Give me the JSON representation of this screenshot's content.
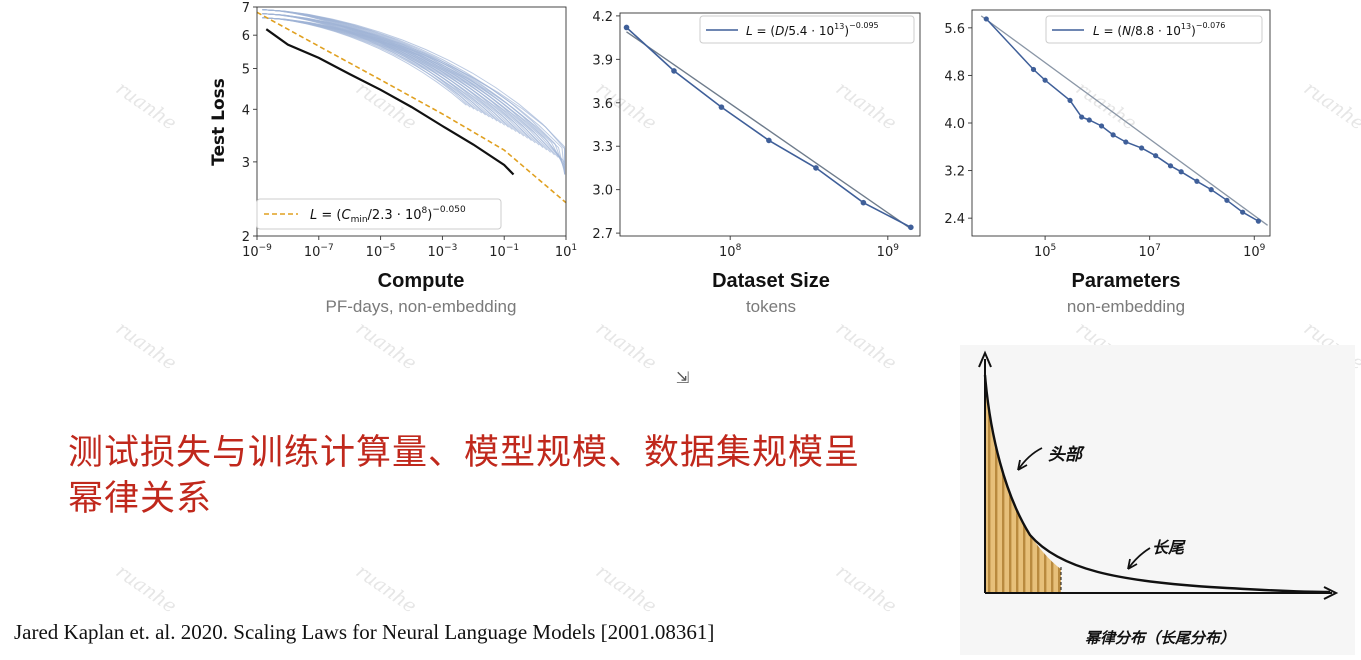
{
  "chart_data": [
    {
      "type": "line",
      "id": "compute",
      "title": "Compute",
      "subtitle": "PF-days, non-embedding",
      "ylabel": "Test Loss",
      "xscale": "log",
      "yscale": "log",
      "xlim": [
        1e-09,
        10
      ],
      "ylim": [
        2,
        7
      ],
      "x_ticks": [
        "10−9",
        "10−7",
        "10−5",
        "10−3",
        "10−1",
        "101"
      ],
      "y_ticks": [
        "2",
        "3",
        "4",
        "5",
        "6",
        "7"
      ],
      "legend": {
        "label": "L = (C_min/2.3·10^8)^−0.050",
        "placement": "bottom-left"
      },
      "series": [
        {
          "name": "L = (C_min/2.3·10^8)^−0.050",
          "style": "dashed",
          "color": "#e0a020",
          "x": [
            1e-09,
            1e-07,
            1e-05,
            0.001,
            0.1,
            10
          ],
          "y": [
            6.8,
            5.65,
            4.7,
            3.9,
            3.2,
            2.4
          ]
        },
        {
          "style": "solid",
          "color": "#111111",
          "x": [
            2e-09,
            1e-08,
            1e-07,
            1e-06,
            1e-05,
            0.0001,
            0.001,
            0.01,
            0.1,
            0.2
          ],
          "y": [
            6.2,
            5.7,
            5.3,
            4.85,
            4.45,
            4.05,
            3.65,
            3.3,
            2.95,
            2.8
          ]
        }
      ],
      "colors": {
        "curves": "#9fb4d6",
        "frontier": "#111111",
        "fit": "#e0a020"
      }
    },
    {
      "type": "line",
      "id": "dataset",
      "title": "Dataset Size",
      "subtitle": "tokens",
      "xscale": "log",
      "xlim": [
        20000000.0,
        1600000000.0
      ],
      "ylim": [
        2.68,
        4.22
      ],
      "x_ticks": [
        "108",
        "109"
      ],
      "y_ticks": [
        "2.7",
        "3.0",
        "3.3",
        "3.6",
        "3.9",
        "4.2"
      ],
      "legend": {
        "label": "L = (D/5.4·10^13)^−0.095",
        "placement": "top-right"
      },
      "series": [
        {
          "name": "L = (D/5.4·10^13)^−0.095",
          "x": [
            22000000.0,
            44000000.0,
            88000000.0,
            176000000.0,
            350000000.0,
            700000000.0,
            1400000000.0
          ],
          "y": [
            4.12,
            3.82,
            3.57,
            3.34,
            3.15,
            2.91,
            2.74
          ]
        }
      ]
    },
    {
      "type": "line",
      "id": "parameters",
      "title": "Parameters",
      "subtitle": "non-embedding",
      "xscale": "log",
      "xlim": [
        4000.0,
        2000000000.0
      ],
      "ylim": [
        2.1,
        5.9
      ],
      "x_ticks": [
        "105",
        "107",
        "109"
      ],
      "y_ticks": [
        "2.4",
        "3.2",
        "4.0",
        "4.8",
        "5.6"
      ],
      "legend": {
        "label": "L = (N/8.8·10^13)^−0.076",
        "placement": "top-right"
      },
      "series": [
        {
          "name": "L = (N/8.8·10^13)^−0.076",
          "x": [
            7500.0,
            60000.0,
            100000.0,
            300000.0,
            500000.0,
            700000.0,
            1200000.0,
            2000000.0,
            3500000.0,
            7000000.0,
            13000000.0,
            25000000.0,
            40000000.0,
            80000000.0,
            150000000.0,
            300000000.0,
            600000000.0,
            1200000000.0
          ],
          "y": [
            5.75,
            4.9,
            4.72,
            4.38,
            4.1,
            4.05,
            3.95,
            3.8,
            3.68,
            3.58,
            3.45,
            3.28,
            3.18,
            3.02,
            2.88,
            2.7,
            2.5,
            2.35
          ]
        }
      ]
    }
  ],
  "headline": "测试损失与训练计算量、模型规模、数据集规模呈幂律关系",
  "citation": "Jared Kaplan et. al. 2020. Scaling Laws for Neural Language Models [2001.08361]",
  "watermark": "ruanhe",
  "sketch": {
    "head_label": "头部",
    "tail_label": "长尾",
    "caption": "幂律分布（长尾分布）",
    "colors": {
      "fill": "#e7c07a",
      "stripe": "#b98a3e",
      "ink": "#111111"
    }
  }
}
